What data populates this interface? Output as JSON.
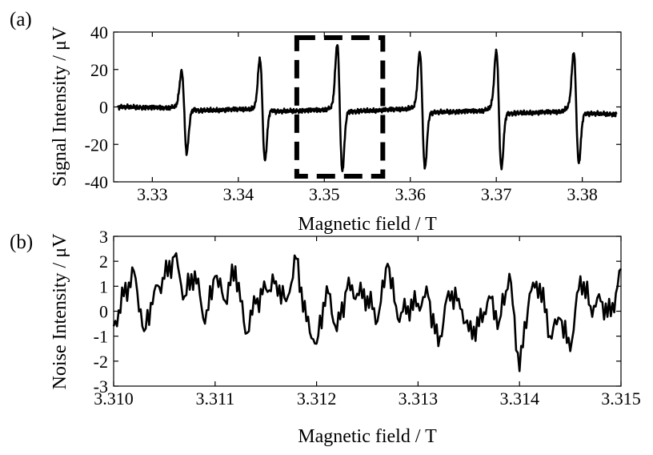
{
  "chart_data": [
    {
      "type": "line",
      "panel_label": "(a)",
      "xlabel": "Magnetic field / T",
      "ylabel": "Signal Intensity / μV",
      "xlim": [
        3.3255,
        3.3845
      ],
      "ylim": [
        -40,
        40
      ],
      "xticks": [
        3.33,
        3.34,
        3.35,
        3.36,
        3.37,
        3.38
      ],
      "xtick_labels": [
        "3.33",
        "3.34",
        "3.35",
        "3.36",
        "3.37",
        "3.38"
      ],
      "yticks": [
        -40,
        -20,
        0,
        20,
        40
      ],
      "ytick_labels": [
        "-40",
        "-20",
        "0",
        "20",
        "40"
      ],
      "grid": false,
      "annotation": {
        "type": "dashed-box",
        "x_range": [
          3.3468,
          3.3568
        ],
        "y_range": [
          -37,
          37
        ]
      },
      "baseline": [
        [
          3.326,
          0.0
        ],
        [
          3.3318,
          -0.5
        ],
        [
          3.333,
          0.5
        ],
        [
          3.3355,
          -2.0
        ],
        [
          3.3415,
          -1.0
        ],
        [
          3.3427,
          0.0
        ],
        [
          3.3445,
          -2.5
        ],
        [
          3.35,
          -1.5
        ],
        [
          3.3512,
          0.0
        ],
        [
          3.3532,
          -2.5
        ],
        [
          3.3595,
          -1.0
        ],
        [
          3.3608,
          0.0
        ],
        [
          3.3625,
          -3.0
        ],
        [
          3.3685,
          -2.0
        ],
        [
          3.3695,
          0.0
        ],
        [
          3.3715,
          -3.5
        ],
        [
          3.3775,
          -2.5
        ],
        [
          3.3785,
          0.0
        ],
        [
          3.3805,
          -3.5
        ],
        [
          3.3845,
          -4.0
        ]
      ],
      "peaks": [
        {
          "x": 3.3337,
          "max": 19,
          "min": -24
        },
        {
          "x": 3.3428,
          "max": 26,
          "min": -28
        },
        {
          "x": 3.3518,
          "max": 34,
          "min": -33
        },
        {
          "x": 3.3614,
          "max": 30,
          "min": -31
        },
        {
          "x": 3.3703,
          "max": 31,
          "min": -31
        },
        {
          "x": 3.3793,
          "max": 30,
          "min": -28
        }
      ]
    },
    {
      "type": "line",
      "panel_label": "(b)",
      "xlabel": "Magnetic field / T",
      "ylabel": "Noise Intensity / μV",
      "xlim": [
        3.31,
        3.315
      ],
      "ylim": [
        -3,
        3
      ],
      "xticks": [
        3.31,
        3.311,
        3.312,
        3.313,
        3.314,
        3.315
      ],
      "xtick_labels": [
        "3.310",
        "3.311",
        "3.312",
        "3.313",
        "3.314",
        "3.315"
      ],
      "yticks": [
        -3,
        -2,
        -1,
        0,
        1,
        2,
        3
      ],
      "ytick_labels": [
        "-3",
        "-2",
        "-1",
        "0",
        "1",
        "2",
        "3"
      ],
      "grid": false,
      "series": [
        {
          "x": [
            3.31,
            3.3101,
            3.3102,
            3.3103,
            3.3104,
            3.3105,
            3.3106,
            3.3107,
            3.3108,
            3.3109,
            3.311,
            3.3111,
            3.3112,
            3.3113,
            3.3114,
            3.3115,
            3.3116,
            3.3117,
            3.3118,
            3.3119,
            3.312,
            3.3121,
            3.3122,
            3.3123,
            3.3124,
            3.3125,
            3.3126,
            3.3127,
            3.3128,
            3.3129,
            3.313,
            3.3131,
            3.3132,
            3.3133,
            3.3134,
            3.3135,
            3.3136,
            3.3137,
            3.3138,
            3.3139,
            3.314,
            3.3141,
            3.3142,
            3.3143,
            3.3144,
            3.3145,
            3.3146,
            3.3147,
            3.3148,
            3.3149,
            3.315
          ],
          "values": [
            -0.6,
            0.6,
            1.6,
            -0.8,
            0.8,
            1.3,
            2.2,
            0.6,
            1.6,
            -0.5,
            1.4,
            0.4,
            1.8,
            -0.9,
            0.3,
            0.9,
            1.2,
            0.4,
            2.1,
            -0.4,
            -1.3,
            1.0,
            -0.8,
            0.9,
            0.7,
            0.6,
            -0.4,
            1.9,
            -0.3,
            0.2,
            0.3,
            0.6,
            -1.4,
            0.8,
            0.5,
            -0.8,
            -0.6,
            0.6,
            -0.4,
            1.5,
            -2.4,
            0.7,
            1.1,
            -1.0,
            -0.3,
            -1.6,
            1.4,
            0.2,
            0.4,
            -0.2,
            1.7
          ]
        }
      ]
    }
  ]
}
